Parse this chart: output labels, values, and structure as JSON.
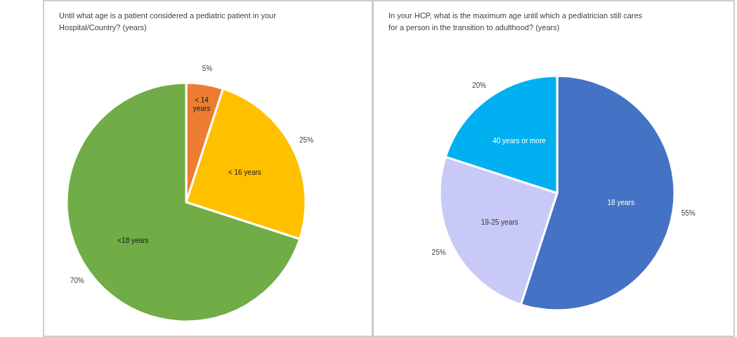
{
  "chart_data": [
    {
      "type": "pie",
      "title": "Until what age is a patient considered a pediatric patient in your Hospital/Country? (years)",
      "categories": [
        "< 14 years",
        "< 16 years",
        "<18 years"
      ],
      "values": [
        5,
        25,
        70
      ],
      "colors": [
        "#ed7d31",
        "#ffc000",
        "#70ad47"
      ],
      "value_labels": [
        "5%",
        "25%",
        "70%"
      ]
    },
    {
      "type": "pie",
      "title": "In your HCP, what is the maximum age until which a pediatrician still cares for a person in the transition to adulthood? (years)",
      "categories": [
        "18 years",
        "19-25 years",
        "40 years or more"
      ],
      "values": [
        55,
        25,
        20
      ],
      "colors": [
        "#4472c4",
        "#c9c9f7",
        "#00b0f0"
      ],
      "value_labels": [
        "55%",
        "25%",
        "20%"
      ]
    }
  ]
}
